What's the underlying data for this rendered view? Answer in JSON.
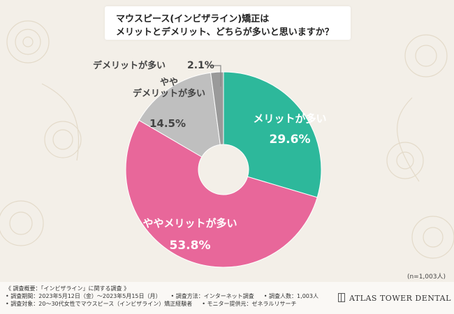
{
  "title": {
    "line1": "マウスピース(インビザライン)矯正は",
    "line2": "メリットとデメリット、どちらが多いと思いますか？"
  },
  "chart_data": {
    "type": "pie",
    "donut": true,
    "start_angle_deg": 0,
    "direction": "clockwise",
    "slices": [
      {
        "label": "メリットが多い",
        "value": 29.6,
        "color": "#2db89b",
        "label_color": "#ffffff"
      },
      {
        "label": "ややメリットが多い",
        "value": 53.8,
        "color": "#e8679a",
        "label_color": "#ffffff"
      },
      {
        "label": "やや\nデメリットが多い",
        "value": 14.5,
        "color": "#bfbfbf",
        "label_color": "#444444"
      },
      {
        "label": "デメリットが多い",
        "value": 2.1,
        "color": "#9a9a9a",
        "label_color": "#444444"
      }
    ],
    "unit": "%"
  },
  "sample_note": "(n=1,003人)",
  "footer": {
    "line1": "《 調査概要：「インビザライン」に関する調査 》",
    "period": "• 調査期間：2023年5月12日（金）～2023年5月15日（月）",
    "method": "• 調査方法：インターネット調査",
    "count": "• 調査人数：1,003人",
    "target": "• 調査対象：20～30代女性でマウスピース（インビザライン）矯正経験者",
    "provider": "• モニター提供元：ゼネラルリサーチ",
    "logo": "ATLAS TOWER DENTAL"
  },
  "colors": {
    "background": "#f3efe8",
    "floral": "#e6ded0"
  }
}
